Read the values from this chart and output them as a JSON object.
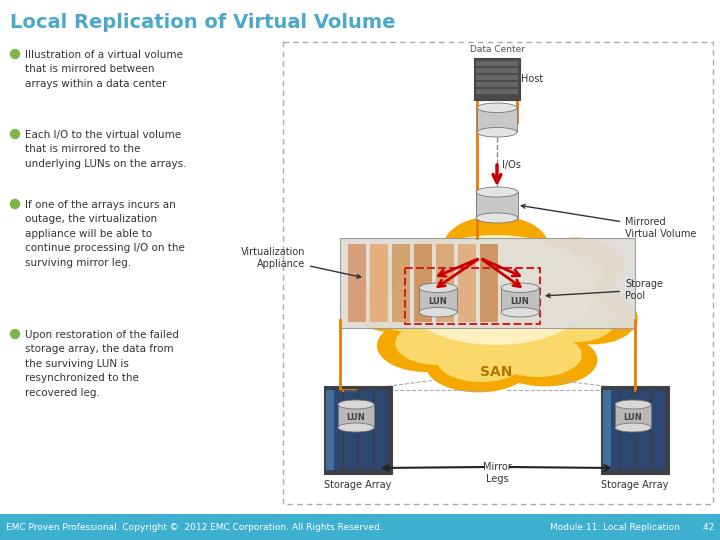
{
  "title": "Local Replication of Virtual Volume",
  "title_color": "#4ba8cb",
  "title_fontsize": 14,
  "bg_color": "#ffffff",
  "footer_bg": "#3db0d0",
  "footer_text_left": "EMC Proven Professional. Copyright ©  2012 EMC Corporation. All Rights Reserved.",
  "footer_text_right": "Module 11: Local Replication        42",
  "footer_color": "#ffffff",
  "footer_fontsize": 6.5,
  "bullet_color": "#7ab648",
  "bullet_text_color": "#333333",
  "bullet_fontsize": 7.5,
  "bullets": [
    "Illustration of a virtual volume\nthat is mirrored between\narrays within a data center",
    "Each I/O to the virtual volume\nthat is mirrored to the\nunderlying LUNs on the arrays.",
    "If one of the arrays incurs an\noutage, the virtualization\nappliance will be able to\ncontinue processing I/O on the\nsurviving mirror leg.",
    "Upon restoration of the failed\nstorage array, the data from\nthe surviving LUN is\nresynchronized to the\nrecovered leg."
  ],
  "datacenter_label": "Data Center",
  "host_label": "Host",
  "ios_label": "I/Os",
  "san_label": "SAN",
  "mirror_legs_label": "Mirror\nLegs",
  "storage_array_label": "Storage Array",
  "virt_appliance_label": "Virtualization\nAppliance",
  "mirrored_vv_label": "Mirrored\nVirtual Volume",
  "storage_pool_label": "Storage\nPool",
  "cloud_orange": "#f5a800",
  "cloud_inner": "#fad96a",
  "cloud_highlight": "#fef0c0",
  "dashed_border_color": "#aaaaaa",
  "arrow_red": "#cc0000",
  "arrow_orange": "#e87c00",
  "arrow_black": "#222222",
  "label_fontsize": 7.0,
  "san_fontsize": 10
}
